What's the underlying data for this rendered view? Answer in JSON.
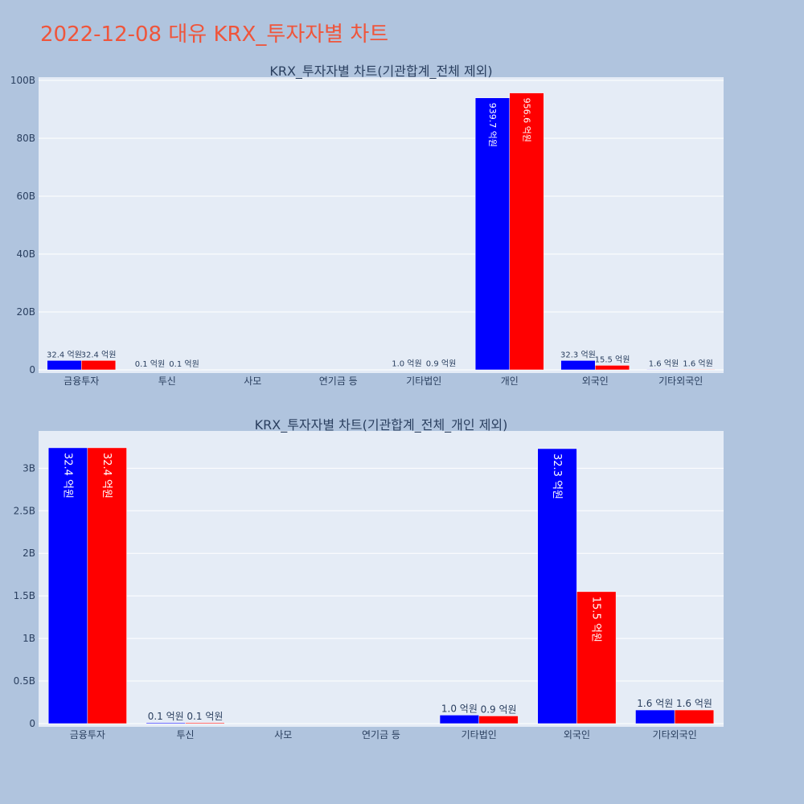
{
  "page": {
    "title": "2022-12-08 대유 KRX_투자자별 차트"
  },
  "colors": {
    "buy": "#0000ff",
    "sell": "#ff0000",
    "plot_bg": "#e5ecf6",
    "page_bg": "#b0c4de",
    "title": "#ef553b",
    "text": "#2a3f5f"
  },
  "chart_data": [
    {
      "type": "bar",
      "title": "KRX_투자자별 차트(기관합계_전체 제외)",
      "categories": [
        "금융투자",
        "투신",
        "사모",
        "연기금 등",
        "기타법인",
        "개인",
        "외국인",
        "기타외국인"
      ],
      "series": [
        {
          "name": "buy",
          "values": [
            3.24,
            0.01,
            0,
            0,
            0.1,
            93.97,
            3.23,
            0.16
          ],
          "labels": [
            "32.4 억원",
            "0.1 억원",
            "",
            "",
            "1.0 억원",
            "939.7 억원",
            "32.3 억원",
            "1.6 억원"
          ]
        },
        {
          "name": "sell",
          "values": [
            3.24,
            0.01,
            0,
            0,
            0.09,
            95.66,
            1.55,
            0.16
          ],
          "labels": [
            "32.4 억원",
            "0.1 억원",
            "",
            "",
            "0.9 억원",
            "956.6 억원",
            "15.5 억원",
            "1.6 억원"
          ]
        }
      ],
      "ylim": [
        0,
        100
      ],
      "yticks": [
        0,
        20,
        40,
        60,
        80,
        100
      ],
      "yticklabels": [
        "0",
        "20B",
        "40B",
        "60B",
        "80B",
        "100B"
      ],
      "label_size": "small"
    },
    {
      "type": "bar",
      "title": "KRX_투자자별 차트(기관합계_전체_개인 제외)",
      "categories": [
        "금융투자",
        "투신",
        "사모",
        "연기금 등",
        "기타법인",
        "외국인",
        "기타외국인"
      ],
      "series": [
        {
          "name": "buy",
          "values": [
            3.24,
            0.01,
            0,
            0,
            0.1,
            3.23,
            0.16
          ],
          "labels": [
            "32.4 억원",
            "0.1 억원",
            "",
            "",
            "1.0 억원",
            "32.3 억원",
            "1.6 억원"
          ]
        },
        {
          "name": "sell",
          "values": [
            3.24,
            0.01,
            0,
            0,
            0.09,
            1.55,
            0.16
          ],
          "labels": [
            "32.4 억원",
            "0.1 억원",
            "",
            "",
            "0.9 억원",
            "15.5 억원",
            "1.6 억원"
          ]
        }
      ],
      "ylim": [
        0,
        3.4
      ],
      "yticks": [
        0,
        0.5,
        1,
        1.5,
        2,
        2.5,
        3
      ],
      "yticklabels": [
        "0",
        "0.5B",
        "1B",
        "1.5B",
        "2B",
        "2.5B",
        "3B"
      ],
      "label_size": "normal"
    }
  ]
}
